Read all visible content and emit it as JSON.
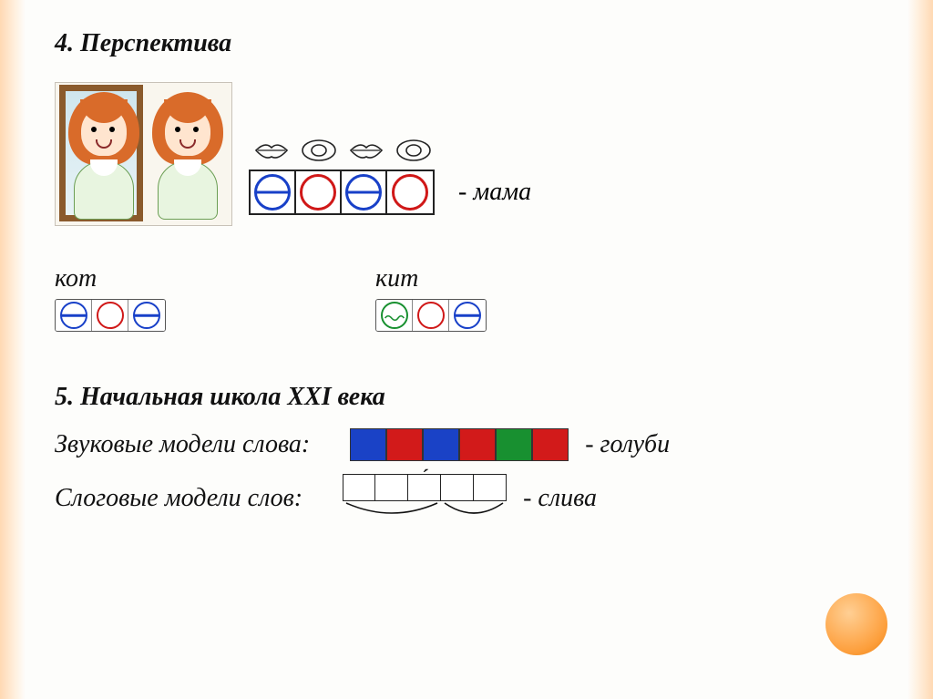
{
  "section4": {
    "heading": "4. Перспектива",
    "mama_label": "-  мама",
    "mama_circles": [
      {
        "color": "blue",
        "hasBar": true
      },
      {
        "color": "red",
        "hasBar": false
      },
      {
        "color": "blue",
        "hasBar": true
      },
      {
        "color": "red",
        "hasBar": false
      }
    ],
    "lips": [
      "closed",
      "open",
      "closed",
      "open"
    ],
    "words": [
      {
        "label": "кот",
        "circles": [
          {
            "color": "blue",
            "hasBar": true
          },
          {
            "color": "red",
            "hasBar": false
          },
          {
            "color": "blue",
            "hasBar": true
          }
        ]
      },
      {
        "label": "кит",
        "circles": [
          {
            "color": "green",
            "wave": true
          },
          {
            "color": "red",
            "hasBar": false
          },
          {
            "color": "blue",
            "hasBar": true
          }
        ]
      }
    ]
  },
  "section5": {
    "heading": "5. Начальная школа XXI века",
    "sound_line_prefix": "Звуковые модели слова:",
    "sound_squares_colors": [
      "#1a42c6",
      "#d21a1a",
      "#1a42c6",
      "#d21a1a",
      "#189030",
      "#d21a1a"
    ],
    "sound_label": "- голуби",
    "syllable_line_prefix": "Слоговые модели слов:",
    "syllable_boxes": 5,
    "syllable_accent_index": 2,
    "syllable_arcs": [
      [
        0,
        2
      ],
      [
        3,
        4
      ]
    ],
    "syllable_label": "- слива"
  },
  "colors": {
    "blue": "#1840c8",
    "red": "#d01818",
    "green": "#189030",
    "hair": "#d96b2a",
    "skin": "#ffe5cf",
    "shirt": "#e8f5e0",
    "mirror_frame": "#8a5a2c"
  },
  "typography": {
    "font_family": "Georgia serif",
    "heading_fontsize": 28,
    "heading_style": "bold italic",
    "body_fontsize": 28,
    "body_style": "italic"
  }
}
